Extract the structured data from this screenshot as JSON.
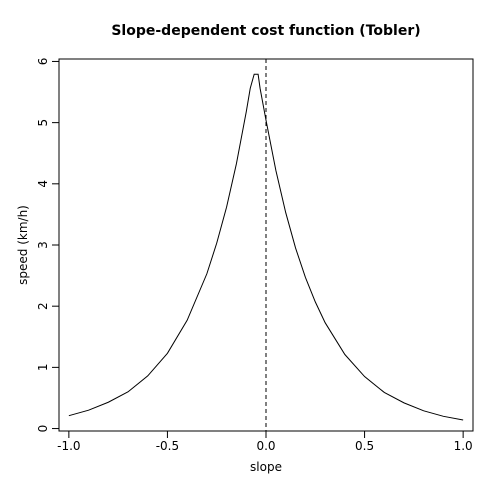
{
  "chart_data": {
    "type": "line",
    "title": "Slope-dependent cost function (Tobler)",
    "xlabel": "slope",
    "ylabel": "speed (km/h)",
    "xlim": [
      -1.05,
      1.05
    ],
    "ylim": [
      -0.04,
      6.04
    ],
    "x_ticks": [
      {
        "value": -1.0,
        "label": "-1.0"
      },
      {
        "value": -0.5,
        "label": "-0.5"
      },
      {
        "value": 0.0,
        "label": "0.0"
      },
      {
        "value": 0.5,
        "label": "0.5"
      },
      {
        "value": 1.0,
        "label": "1.0"
      }
    ],
    "y_ticks": [
      {
        "value": 0,
        "label": "0"
      },
      {
        "value": 1,
        "label": "1"
      },
      {
        "value": 2,
        "label": "2"
      },
      {
        "value": 3,
        "label": "3"
      },
      {
        "value": 4,
        "label": "4"
      },
      {
        "value": 5,
        "label": "5"
      },
      {
        "value": 6,
        "label": "6"
      }
    ],
    "reference_line": {
      "x": 0,
      "style": "dashed"
    },
    "grid": false,
    "series": [
      {
        "x": [
          -1.0,
          -0.9,
          -0.8,
          -0.7,
          -0.6,
          -0.5,
          -0.4,
          -0.3,
          -0.25,
          -0.2,
          -0.15,
          -0.1,
          -0.08,
          -0.06,
          -0.05,
          -0.04,
          -0.03,
          0.0,
          0.05,
          0.1,
          0.15,
          0.2,
          0.25,
          0.3,
          0.4,
          0.5,
          0.6,
          0.7,
          0.8,
          0.9,
          1.0
        ],
        "y": [
          0.21,
          0.3,
          0.43,
          0.6,
          0.86,
          1.23,
          1.77,
          2.53,
          3.03,
          3.62,
          4.33,
          5.18,
          5.56,
          5.79,
          5.79,
          5.79,
          5.56,
          5.04,
          4.22,
          3.53,
          2.95,
          2.47,
          2.07,
          1.73,
          1.21,
          0.85,
          0.59,
          0.42,
          0.29,
          0.2,
          0.14
        ]
      }
    ]
  }
}
